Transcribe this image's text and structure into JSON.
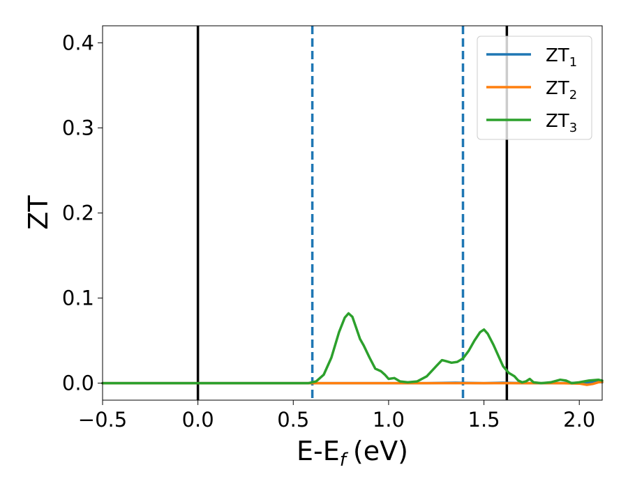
{
  "chart_data": {
    "type": "line",
    "xlabel": "E-E",
    "xlabel_sub": "f",
    "xlabel_unit": "(eV)",
    "ylabel": "ZT",
    "xlim": [
      -0.5,
      2.12
    ],
    "ylim": [
      -0.02,
      0.42
    ],
    "xticks": [
      -0.5,
      0.0,
      0.5,
      1.0,
      1.5,
      2.0
    ],
    "xtick_labels": [
      "−0.5",
      "0.0",
      "0.5",
      "1.0",
      "1.5",
      "2.0"
    ],
    "yticks": [
      0.0,
      0.1,
      0.2,
      0.3,
      0.4
    ],
    "ytick_labels": [
      "0.0",
      "0.1",
      "0.2",
      "0.3",
      "0.4"
    ],
    "grid": false,
    "legend_position": "top-right",
    "vertical_lines": [
      {
        "x": 0.0,
        "style": "solid",
        "color": "#000000"
      },
      {
        "x": 1.62,
        "style": "solid",
        "color": "#000000"
      },
      {
        "x": 0.6,
        "style": "dashed",
        "color": "#1f77b4"
      },
      {
        "x": 1.39,
        "style": "dashed",
        "color": "#1f77b4"
      }
    ],
    "series": [
      {
        "name": "ZT",
        "subscript": "1",
        "color": "#1f77b4",
        "x": [
          -0.5,
          0.0,
          0.5,
          1.0,
          1.2,
          1.35,
          1.5,
          1.6,
          1.7,
          1.8,
          1.9,
          2.0,
          2.05,
          2.1,
          2.12
        ],
        "y": [
          0.0,
          0.0,
          0.0,
          0.0,
          0.0,
          0.0005,
          0.0,
          0.0005,
          0.0,
          0.0,
          0.0,
          0.0005,
          0.001,
          0.0015,
          0.001
        ]
      },
      {
        "name": "ZT",
        "subscript": "2",
        "color": "#ff7f0e",
        "x": [
          -0.5,
          0.0,
          0.5,
          1.0,
          1.5,
          1.9,
          2.0,
          2.04,
          2.07,
          2.1,
          2.12
        ],
        "y": [
          0.0,
          0.0,
          0.0,
          0.0,
          0.0,
          0.0,
          -0.0005,
          -0.002,
          -0.001,
          0.001,
          0.0015
        ]
      },
      {
        "name": "ZT",
        "subscript": "3",
        "color": "#2ca02c",
        "x": [
          -0.5,
          0.0,
          0.5,
          0.58,
          0.62,
          0.66,
          0.7,
          0.74,
          0.77,
          0.79,
          0.81,
          0.83,
          0.85,
          0.87,
          0.9,
          0.93,
          0.96,
          0.98,
          1.0,
          1.03,
          1.06,
          1.1,
          1.15,
          1.2,
          1.25,
          1.28,
          1.3,
          1.33,
          1.36,
          1.39,
          1.42,
          1.45,
          1.48,
          1.5,
          1.52,
          1.55,
          1.58,
          1.6,
          1.63,
          1.66,
          1.68,
          1.7,
          1.72,
          1.74,
          1.76,
          1.8,
          1.85,
          1.9,
          1.93,
          1.96,
          2.0,
          2.05,
          2.1,
          2.12
        ],
        "y": [
          0.0,
          0.0,
          0.0,
          0.0,
          0.002,
          0.01,
          0.03,
          0.06,
          0.077,
          0.082,
          0.078,
          0.065,
          0.052,
          0.044,
          0.03,
          0.017,
          0.014,
          0.01,
          0.005,
          0.006,
          0.002,
          0.001,
          0.002,
          0.008,
          0.02,
          0.027,
          0.026,
          0.024,
          0.025,
          0.029,
          0.038,
          0.05,
          0.06,
          0.063,
          0.058,
          0.045,
          0.03,
          0.02,
          0.012,
          0.008,
          0.003,
          0.001,
          0.002,
          0.005,
          0.001,
          0.0,
          0.001,
          0.004,
          0.003,
          0.0,
          0.001,
          0.003,
          0.004,
          0.003
        ]
      }
    ]
  }
}
